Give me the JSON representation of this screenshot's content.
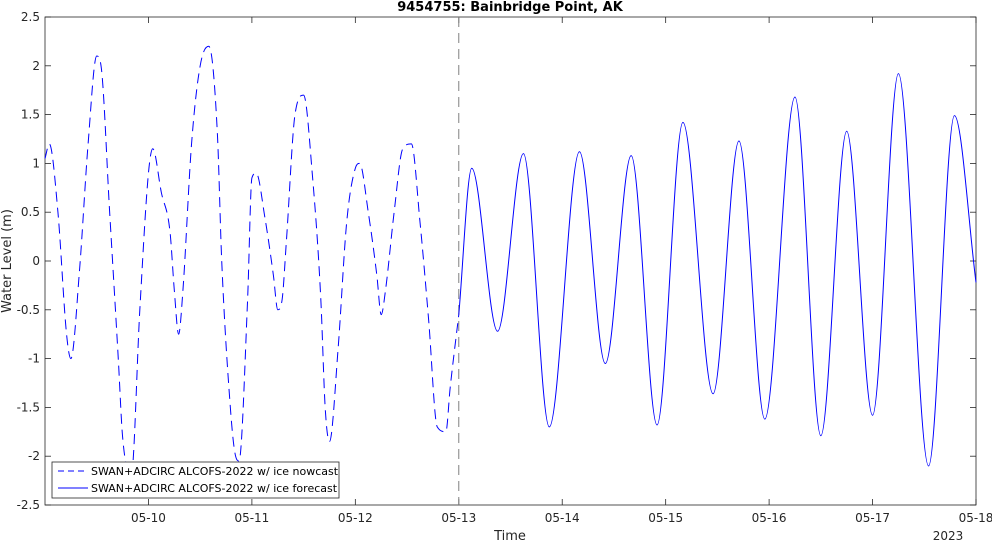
{
  "chart_data": {
    "type": "line",
    "title": "9454755: Bainbridge Point, AK",
    "xlabel": "Time",
    "ylabel": "Water Level (m)",
    "year_label": "2023",
    "xlim": [
      "2023-05-09T00:00",
      "2023-05-18T00:00"
    ],
    "ylim": [
      -2.5,
      2.5
    ],
    "yticks": [
      -2.5,
      -2,
      -1.5,
      -1,
      -0.5,
      0,
      0.5,
      1,
      1.5,
      2,
      2.5
    ],
    "ytick_labels": [
      "-2.5",
      "-2",
      "-1.5",
      "-1",
      "-0.5",
      "0",
      "0.5",
      "1",
      "1.5",
      "2",
      "2.5"
    ],
    "xticks": [
      "2023-05-10",
      "2023-05-11",
      "2023-05-12",
      "2023-05-13",
      "2023-05-14",
      "2023-05-15",
      "2023-05-16",
      "2023-05-17",
      "2023-05-18"
    ],
    "xtick_labels": [
      "05-10",
      "05-11",
      "05-12",
      "05-13",
      "05-14",
      "05-15",
      "05-16",
      "05-17",
      "05-18"
    ],
    "grid": false,
    "legend_position": "bottom-left",
    "vline_x": "2023-05-13T00:00",
    "colors": {
      "series": "#0000ff",
      "vline": "#808080",
      "axes": "#262626"
    },
    "series": [
      {
        "name": "SWAN+ADCIRC ALCOFS-2022 w/ ice nowcast",
        "style": "dashed",
        "x": [
          "2023-05-09T00:00",
          "2023-05-09T01:00",
          "2023-05-09T03:00",
          "2023-05-09T05:00",
          "2023-05-09T06:00",
          "2023-05-09T08:00",
          "2023-05-09T10:00",
          "2023-05-09T12:00",
          "2023-05-09T13:00",
          "2023-05-09T15:00",
          "2023-05-09T17:00",
          "2023-05-09T18:00",
          "2023-05-09T20:00",
          "2023-05-09T22:00",
          "2023-05-10T00:00",
          "2023-05-10T01:00",
          "2023-05-10T03:00",
          "2023-05-10T05:00",
          "2023-05-10T06:00",
          "2023-05-10T07:00",
          "2023-05-10T08:00",
          "2023-05-10T10:00",
          "2023-05-10T12:00",
          "2023-05-10T14:00",
          "2023-05-10T16:00",
          "2023-05-10T17:00",
          "2023-05-10T19:00",
          "2023-05-10T20:00",
          "2023-05-10T21:00",
          "2023-05-10T23:00",
          "2023-05-11T00:00",
          "2023-05-11T01:00",
          "2023-05-11T03:00",
          "2023-05-11T05:00",
          "2023-05-11T06:00",
          "2023-05-11T07:00",
          "2023-05-11T08:00",
          "2023-05-11T10:00",
          "2023-05-11T12:00",
          "2023-05-11T14:00",
          "2023-05-11T16:00",
          "2023-05-11T17:00",
          "2023-05-11T18:00",
          "2023-05-11T20:00",
          "2023-05-11T22:00",
          "2023-05-12T00:00",
          "2023-05-12T01:00",
          "2023-05-12T03:00",
          "2023-05-12T05:00",
          "2023-05-12T06:00",
          "2023-05-12T07:00",
          "2023-05-12T09:00",
          "2023-05-12T11:00",
          "2023-05-12T13:00",
          "2023-05-12T15:00",
          "2023-05-12T17:00",
          "2023-05-12T19:00",
          "2023-05-12T21:00",
          "2023-05-12T22:00",
          "2023-05-13T00:00"
        ],
        "values": [
          1.05,
          1.2,
          0.5,
          -0.75,
          -1.0,
          -0.1,
          1.2,
          2.1,
          2.0,
          0.5,
          -1.0,
          -1.8,
          -2.2,
          -0.5,
          0.9,
          1.15,
          0.7,
          0.3,
          -0.3,
          -0.75,
          -0.3,
          1.2,
          2.0,
          2.2,
          1.3,
          0.0,
          -1.5,
          -1.95,
          -2.05,
          -0.4,
          0.85,
          0.9,
          0.45,
          -0.15,
          -0.5,
          -0.4,
          0.2,
          1.5,
          1.7,
          0.9,
          -0.4,
          -1.5,
          -1.85,
          -0.9,
          0.4,
          0.95,
          1.0,
          0.5,
          -0.15,
          -0.55,
          -0.3,
          0.5,
          1.15,
          1.2,
          0.4,
          -0.6,
          -1.7,
          -1.75,
          -1.3,
          -0.55
        ]
      },
      {
        "name": "SWAN+ADCIRC ALCOFS-2022 w/ ice forecast",
        "style": "solid",
        "x": [
          "2023-05-13T00:00",
          "2023-05-13T03:00",
          "2023-05-13T09:00",
          "2023-05-13T15:00",
          "2023-05-13T21:00",
          "2023-05-14T04:00",
          "2023-05-14T10:00",
          "2023-05-14T16:00",
          "2023-05-14T22:00",
          "2023-05-15T04:00",
          "2023-05-15T11:00",
          "2023-05-15T17:00",
          "2023-05-15T23:00",
          "2023-05-16T06:00",
          "2023-05-16T12:00",
          "2023-05-16T18:00",
          "2023-05-17T00:00",
          "2023-05-17T06:00",
          "2023-05-17T13:00",
          "2023-05-17T19:00",
          "2023-05-18T00:00"
        ],
        "values": [
          -0.55,
          0.95,
          -0.72,
          1.1,
          -1.7,
          1.12,
          -1.05,
          1.08,
          -1.68,
          1.42,
          -1.36,
          1.23,
          -1.62,
          1.68,
          -1.79,
          1.33,
          -1.58,
          1.92,
          -2.1,
          1.49,
          -0.22
        ]
      }
    ]
  }
}
